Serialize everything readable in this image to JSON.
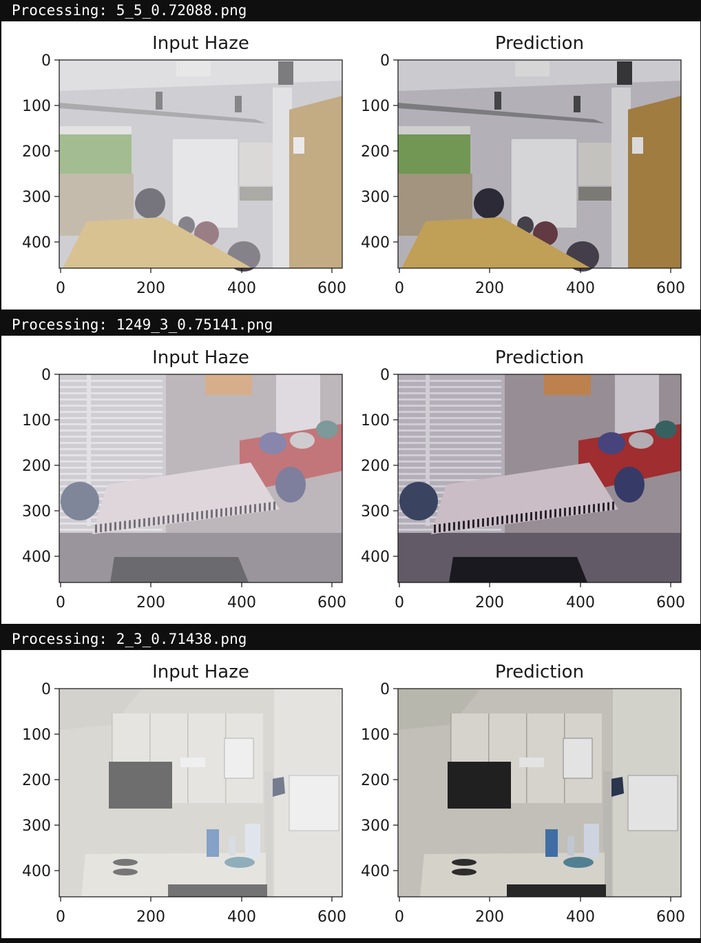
{
  "blocks": [
    {
      "header": "Processing: 5_5_0.72088.png",
      "scene": "office",
      "panels": [
        {
          "title": "Input Haze",
          "variant": "haze"
        },
        {
          "title": "Prediction",
          "variant": "clear"
        }
      ]
    },
    {
      "header": "Processing: 1249_3_0.75141.png",
      "scene": "lounge",
      "panels": [
        {
          "title": "Input Haze",
          "variant": "haze"
        },
        {
          "title": "Prediction",
          "variant": "clear"
        }
      ]
    },
    {
      "header": "Processing: 2_3_0.71438.png",
      "scene": "kitchen",
      "panels": [
        {
          "title": "Input Haze",
          "variant": "haze"
        },
        {
          "title": "Prediction",
          "variant": "clear"
        }
      ]
    }
  ],
  "axes": {
    "y_ticks": [
      "0",
      "100",
      "200",
      "300",
      "400"
    ],
    "x_ticks": [
      "0",
      "200",
      "400",
      "600"
    ]
  }
}
